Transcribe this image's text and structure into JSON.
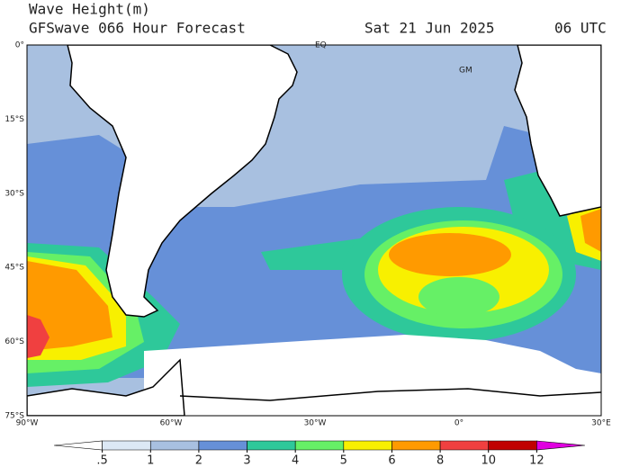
{
  "header": {
    "title": "Wave Height(m)",
    "subtitle": "GFSwave 066 Hour Forecast",
    "date": "Sat 21 Jun 2025",
    "time": "06 UTC"
  },
  "map": {
    "markers": [
      "EQ",
      "GM"
    ],
    "lat_labels": [
      "0°",
      "15°S",
      "30°S",
      "45°S",
      "60°S",
      "75°S"
    ],
    "lon_labels": [
      "90°W",
      "60°W",
      "30°W",
      "0°",
      "30°E"
    ]
  },
  "colorbar": {
    "colors": [
      "#ffffff",
      "#dce8f5",
      "#a8c0e0",
      "#6690d8",
      "#2ec89a",
      "#66f066",
      "#f8f000",
      "#ff9a00",
      "#f04040",
      "#c00000",
      "#e000e0"
    ],
    "ticks": [
      {
        "value": 0.5,
        "label": ".5"
      },
      1,
      2,
      3,
      4,
      5,
      6,
      8,
      10,
      12
    ]
  }
}
